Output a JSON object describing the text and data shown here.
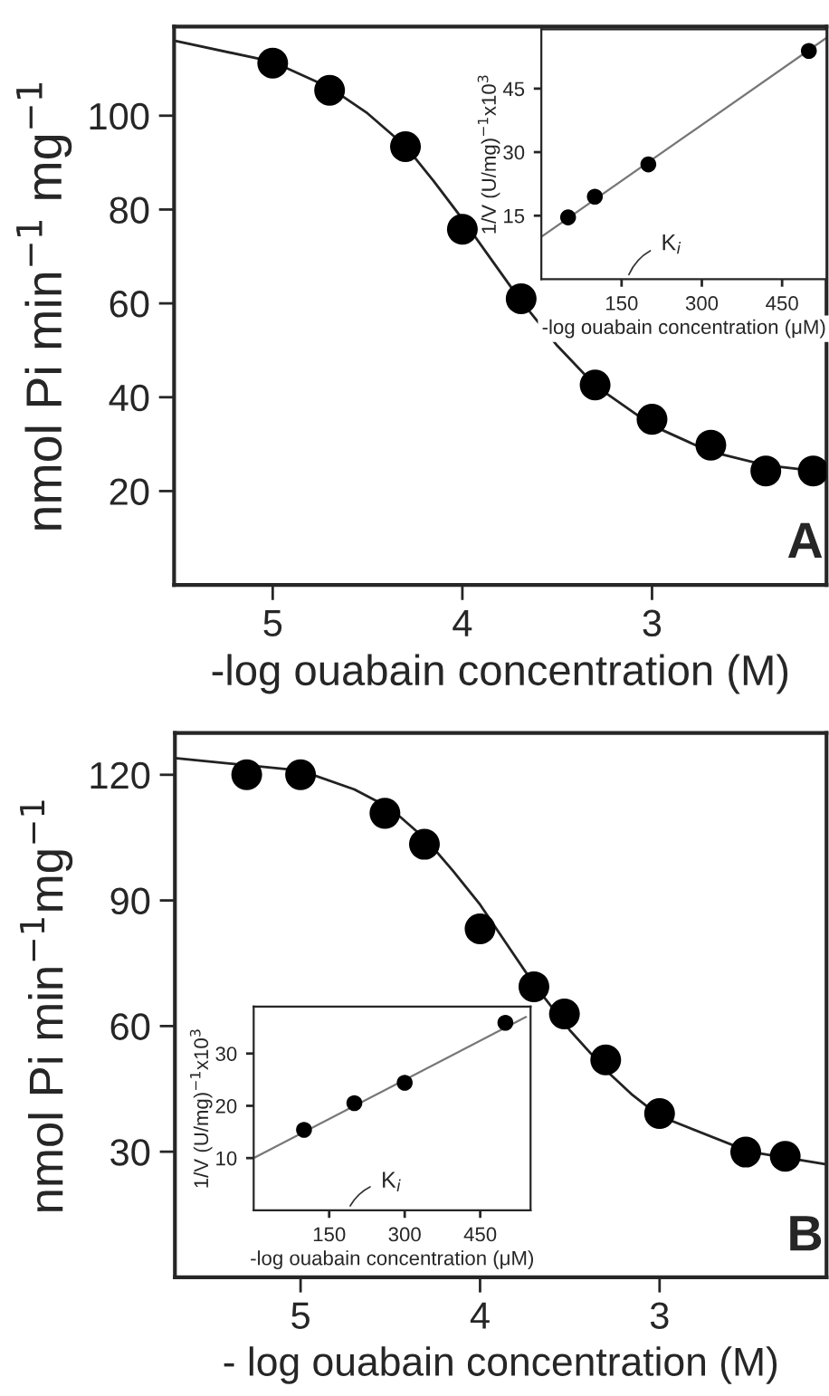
{
  "chart_data": [
    {
      "type": "scatter",
      "xlabel": "-log ouabain concentration (M)",
      "ylabel": "nmol Pi min$^{−1}$ mg$^{−1}$",
      "xlim": [
        5.52,
        2.08
      ],
      "ylim": [
        0,
        119
      ],
      "xticks": [
        5,
        4,
        3
      ],
      "yticks": [
        20,
        40,
        60,
        80,
        100
      ],
      "grid": false,
      "annotations": [
        "A"
      ],
      "series": [
        {
          "type": "scatter",
          "color": "#000000",
          "marker": "circle",
          "x": [
            5.0,
            4.7,
            4.3,
            4.0,
            3.69,
            3.3,
            3.0,
            2.69,
            2.4,
            2.15
          ],
          "values": [
            111.2,
            105.4,
            93.4,
            75.8,
            61.0,
            42.6,
            35.3,
            29.8,
            24.3,
            24.3
          ]
        },
        {
          "type": "line",
          "color": "#222222",
          "marker": "none",
          "line_style": "solid",
          "x": [
            5.52,
            5.0,
            4.7,
            4.5,
            4.3,
            4.15,
            4.0,
            3.85,
            3.7,
            3.5,
            3.3,
            3.0,
            2.7,
            2.4,
            2.08
          ],
          "values": [
            116,
            111.5,
            106,
            100.5,
            93.5,
            86,
            78,
            69.5,
            61,
            51,
            42.5,
            34,
            28.5,
            25.5,
            24
          ]
        }
      ]
    },
    {
      "type": "scatter",
      "xlabel": "-log ouabain concentration (μM)",
      "ylabel": "1/V (U/mg)$^{−1}$x10$^{3}$",
      "xlim": [
        0,
        533
      ],
      "ylim": [
        0,
        59
      ],
      "xticks": [
        150,
        300,
        450
      ],
      "yticks": [
        15,
        30,
        45
      ],
      "grid": false,
      "annotations": [
        "K$_{i}$"
      ],
      "series": [
        {
          "type": "scatter",
          "color": "#000000",
          "marker": "circle",
          "x": [
            50,
            100,
            200,
            500
          ],
          "values": [
            14.6,
            19.5,
            27.1,
            53.9
          ]
        },
        {
          "type": "line",
          "color": "#777777",
          "marker": "none",
          "line_style": "solid",
          "x": [
            0,
            533
          ],
          "values": [
            10,
            57
          ]
        }
      ]
    },
    {
      "type": "scatter",
      "xlabel": "- log ouabain concentration (M)",
      "ylabel": "nmol Pi min$^{−1}$mg$^{−1}$",
      "xlim": [
        5.7,
        2.07
      ],
      "ylim": [
        0,
        130
      ],
      "xticks": [
        5,
        4,
        3
      ],
      "yticks": [
        30,
        60,
        90,
        120
      ],
      "grid": false,
      "annotations": [
        "B"
      ],
      "series": [
        {
          "type": "scatter",
          "color": "#000000",
          "marker": "circle",
          "x": [
            5.3,
            5.0,
            4.53,
            4.31,
            4.0,
            3.7,
            3.53,
            3.3,
            3.0,
            2.52,
            2.3
          ],
          "values": [
            120,
            120,
            110.8,
            103.4,
            83.2,
            69.4,
            62.9,
            51.9,
            39.1,
            29.9,
            28.9
          ]
        },
        {
          "type": "line",
          "color": "#222222",
          "marker": "none",
          "line_style": "solid",
          "x": [
            5.7,
            5.0,
            4.7,
            4.5,
            4.3,
            4.15,
            4.0,
            3.85,
            3.7,
            3.5,
            3.3,
            3.15,
            3.0,
            2.5,
            2.07
          ],
          "values": [
            124,
            121,
            116.5,
            112,
            104.5,
            97,
            89,
            79.5,
            70,
            59,
            49.5,
            43.5,
            38.5,
            30,
            27
          ]
        }
      ]
    },
    {
      "type": "scatter",
      "xlabel": "-log ouabain concentration (μM)",
      "ylabel": "1/V (U/mg)$^{−1}$x10$^{3}$",
      "xlim": [
        0,
        550
      ],
      "ylim": [
        0,
        39
      ],
      "xticks": [
        150,
        300,
        450
      ],
      "yticks": [
        10,
        20,
        30
      ],
      "grid": false,
      "annotations": [
        "K$_{i}$"
      ],
      "series": [
        {
          "type": "scatter",
          "color": "#000000",
          "marker": "circle",
          "x": [
            100,
            200,
            300,
            500
          ],
          "values": [
            15.4,
            20.5,
            24.4,
            35.9
          ]
        },
        {
          "type": "line",
          "color": "#777777",
          "marker": "none",
          "line_style": "solid",
          "x": [
            0,
            541
          ],
          "values": [
            10,
            37
          ]
        }
      ]
    }
  ]
}
